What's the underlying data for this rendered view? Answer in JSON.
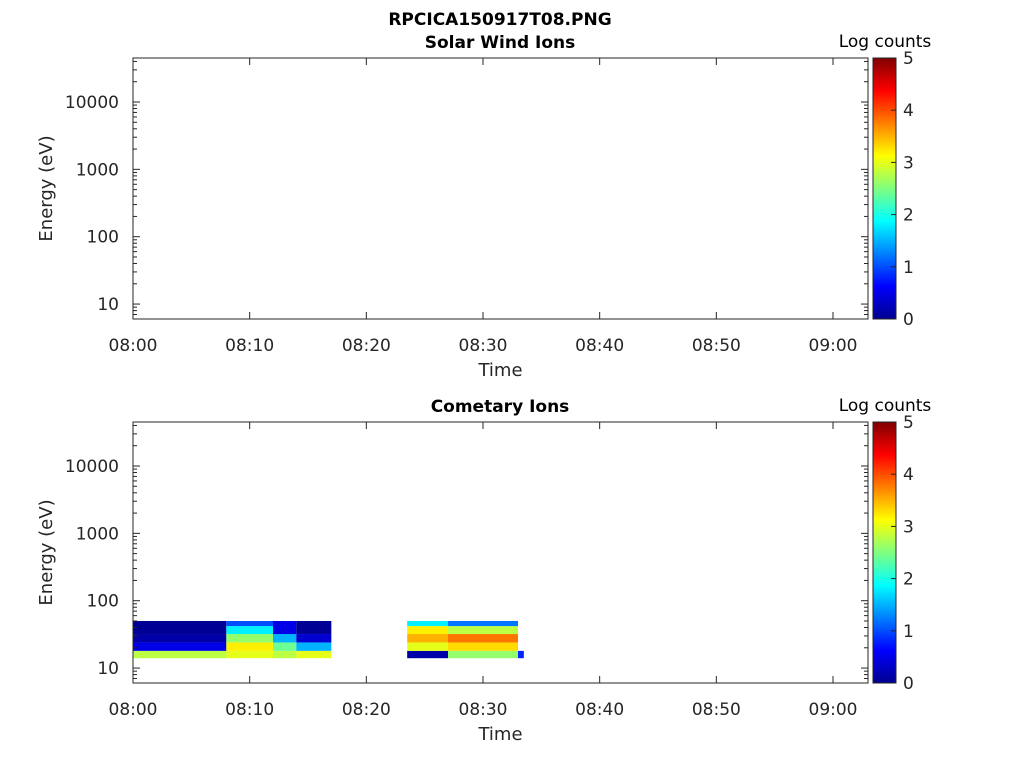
{
  "figure_title": "RPCICA150917T08.PNG",
  "colors": {
    "axis": "#262626",
    "background": "#ffffff",
    "colormap": "jet"
  },
  "chart_data": [
    {
      "type": "heatmap",
      "title": "Solar Wind Ions",
      "xlabel": "Time",
      "ylabel": "Energy (eV)",
      "x_range": [
        "08:00",
        "09:03"
      ],
      "x_ticks": [
        "08:00",
        "08:10",
        "08:20",
        "08:30",
        "08:40",
        "08:50",
        "09:00"
      ],
      "y_scale": "log",
      "y_range": [
        6,
        45000
      ],
      "y_ticks": [
        "10",
        "100",
        "1000",
        "10000"
      ],
      "colorbar": {
        "label": "Log counts",
        "range": [
          0,
          5
        ],
        "ticks": [
          "0",
          "1",
          "2",
          "3",
          "4",
          "5"
        ]
      },
      "cells": []
    },
    {
      "type": "heatmap",
      "title": "Cometary Ions",
      "xlabel": "Time",
      "ylabel": "Energy (eV)",
      "x_range": [
        "08:00",
        "09:03"
      ],
      "x_ticks": [
        "08:00",
        "08:10",
        "08:20",
        "08:30",
        "08:40",
        "08:50",
        "09:00"
      ],
      "y_scale": "log",
      "y_range": [
        6,
        45000
      ],
      "y_ticks": [
        "10",
        "100",
        "1000",
        "10000"
      ],
      "colorbar": {
        "label": "Log counts",
        "range": [
          0,
          5
        ],
        "ticks": [
          "0",
          "1",
          "2",
          "3",
          "4",
          "5"
        ]
      },
      "cells": [
        {
          "t0": "08:00",
          "t1": "08:08",
          "e0": 14,
          "e1": 18,
          "v": 2.8
        },
        {
          "t0": "08:00",
          "t1": "08:08",
          "e0": 18,
          "e1": 24,
          "v": 0.5
        },
        {
          "t0": "08:00",
          "t1": "08:08",
          "e0": 24,
          "e1": 32,
          "v": 0.2
        },
        {
          "t0": "08:00",
          "t1": "08:08",
          "e0": 32,
          "e1": 50,
          "v": 0.1
        },
        {
          "t0": "08:08",
          "t1": "08:12",
          "e0": 14,
          "e1": 18,
          "v": 3.0
        },
        {
          "t0": "08:08",
          "t1": "08:12",
          "e0": 18,
          "e1": 24,
          "v": 3.2
        },
        {
          "t0": "08:08",
          "t1": "08:12",
          "e0": 24,
          "e1": 32,
          "v": 2.6
        },
        {
          "t0": "08:08",
          "t1": "08:12",
          "e0": 32,
          "e1": 42,
          "v": 1.8
        },
        {
          "t0": "08:08",
          "t1": "08:12",
          "e0": 42,
          "e1": 50,
          "v": 1.0
        },
        {
          "t0": "08:12",
          "t1": "08:14",
          "e0": 14,
          "e1": 18,
          "v": 2.8
        },
        {
          "t0": "08:12",
          "t1": "08:14",
          "e0": 18,
          "e1": 24,
          "v": 2.4
        },
        {
          "t0": "08:12",
          "t1": "08:14",
          "e0": 24,
          "e1": 32,
          "v": 1.5
        },
        {
          "t0": "08:12",
          "t1": "08:14",
          "e0": 32,
          "e1": 50,
          "v": 0.5
        },
        {
          "t0": "08:14",
          "t1": "08:17",
          "e0": 14,
          "e1": 18,
          "v": 3.0
        },
        {
          "t0": "08:14",
          "t1": "08:17",
          "e0": 18,
          "e1": 24,
          "v": 1.5
        },
        {
          "t0": "08:14",
          "t1": "08:17",
          "e0": 24,
          "e1": 32,
          "v": 0.4
        },
        {
          "t0": "08:14",
          "t1": "08:17",
          "e0": 32,
          "e1": 50,
          "v": 0.1
        },
        {
          "t0": "08:23.5",
          "t1": "08:27",
          "e0": 14,
          "e1": 18,
          "v": 0.2
        },
        {
          "t0": "08:23.5",
          "t1": "08:27",
          "e0": 18,
          "e1": 24,
          "v": 3.0
        },
        {
          "t0": "08:23.5",
          "t1": "08:27",
          "e0": 24,
          "e1": 32,
          "v": 3.5
        },
        {
          "t0": "08:23.5",
          "t1": "08:27",
          "e0": 32,
          "e1": 42,
          "v": 3.2
        },
        {
          "t0": "08:23.5",
          "t1": "08:27",
          "e0": 42,
          "e1": 50,
          "v": 1.8
        },
        {
          "t0": "08:27",
          "t1": "08:33",
          "e0": 14,
          "e1": 18,
          "v": 2.6
        },
        {
          "t0": "08:27",
          "t1": "08:33",
          "e0": 18,
          "e1": 24,
          "v": 3.3
        },
        {
          "t0": "08:27",
          "t1": "08:33",
          "e0": 24,
          "e1": 32,
          "v": 3.8
        },
        {
          "t0": "08:27",
          "t1": "08:33",
          "e0": 32,
          "e1": 42,
          "v": 2.8
        },
        {
          "t0": "08:27",
          "t1": "08:33",
          "e0": 42,
          "e1": 50,
          "v": 1.2
        },
        {
          "t0": "08:33",
          "t1": "08:33.5",
          "e0": 14,
          "e1": 18,
          "v": 0.8
        }
      ]
    }
  ]
}
